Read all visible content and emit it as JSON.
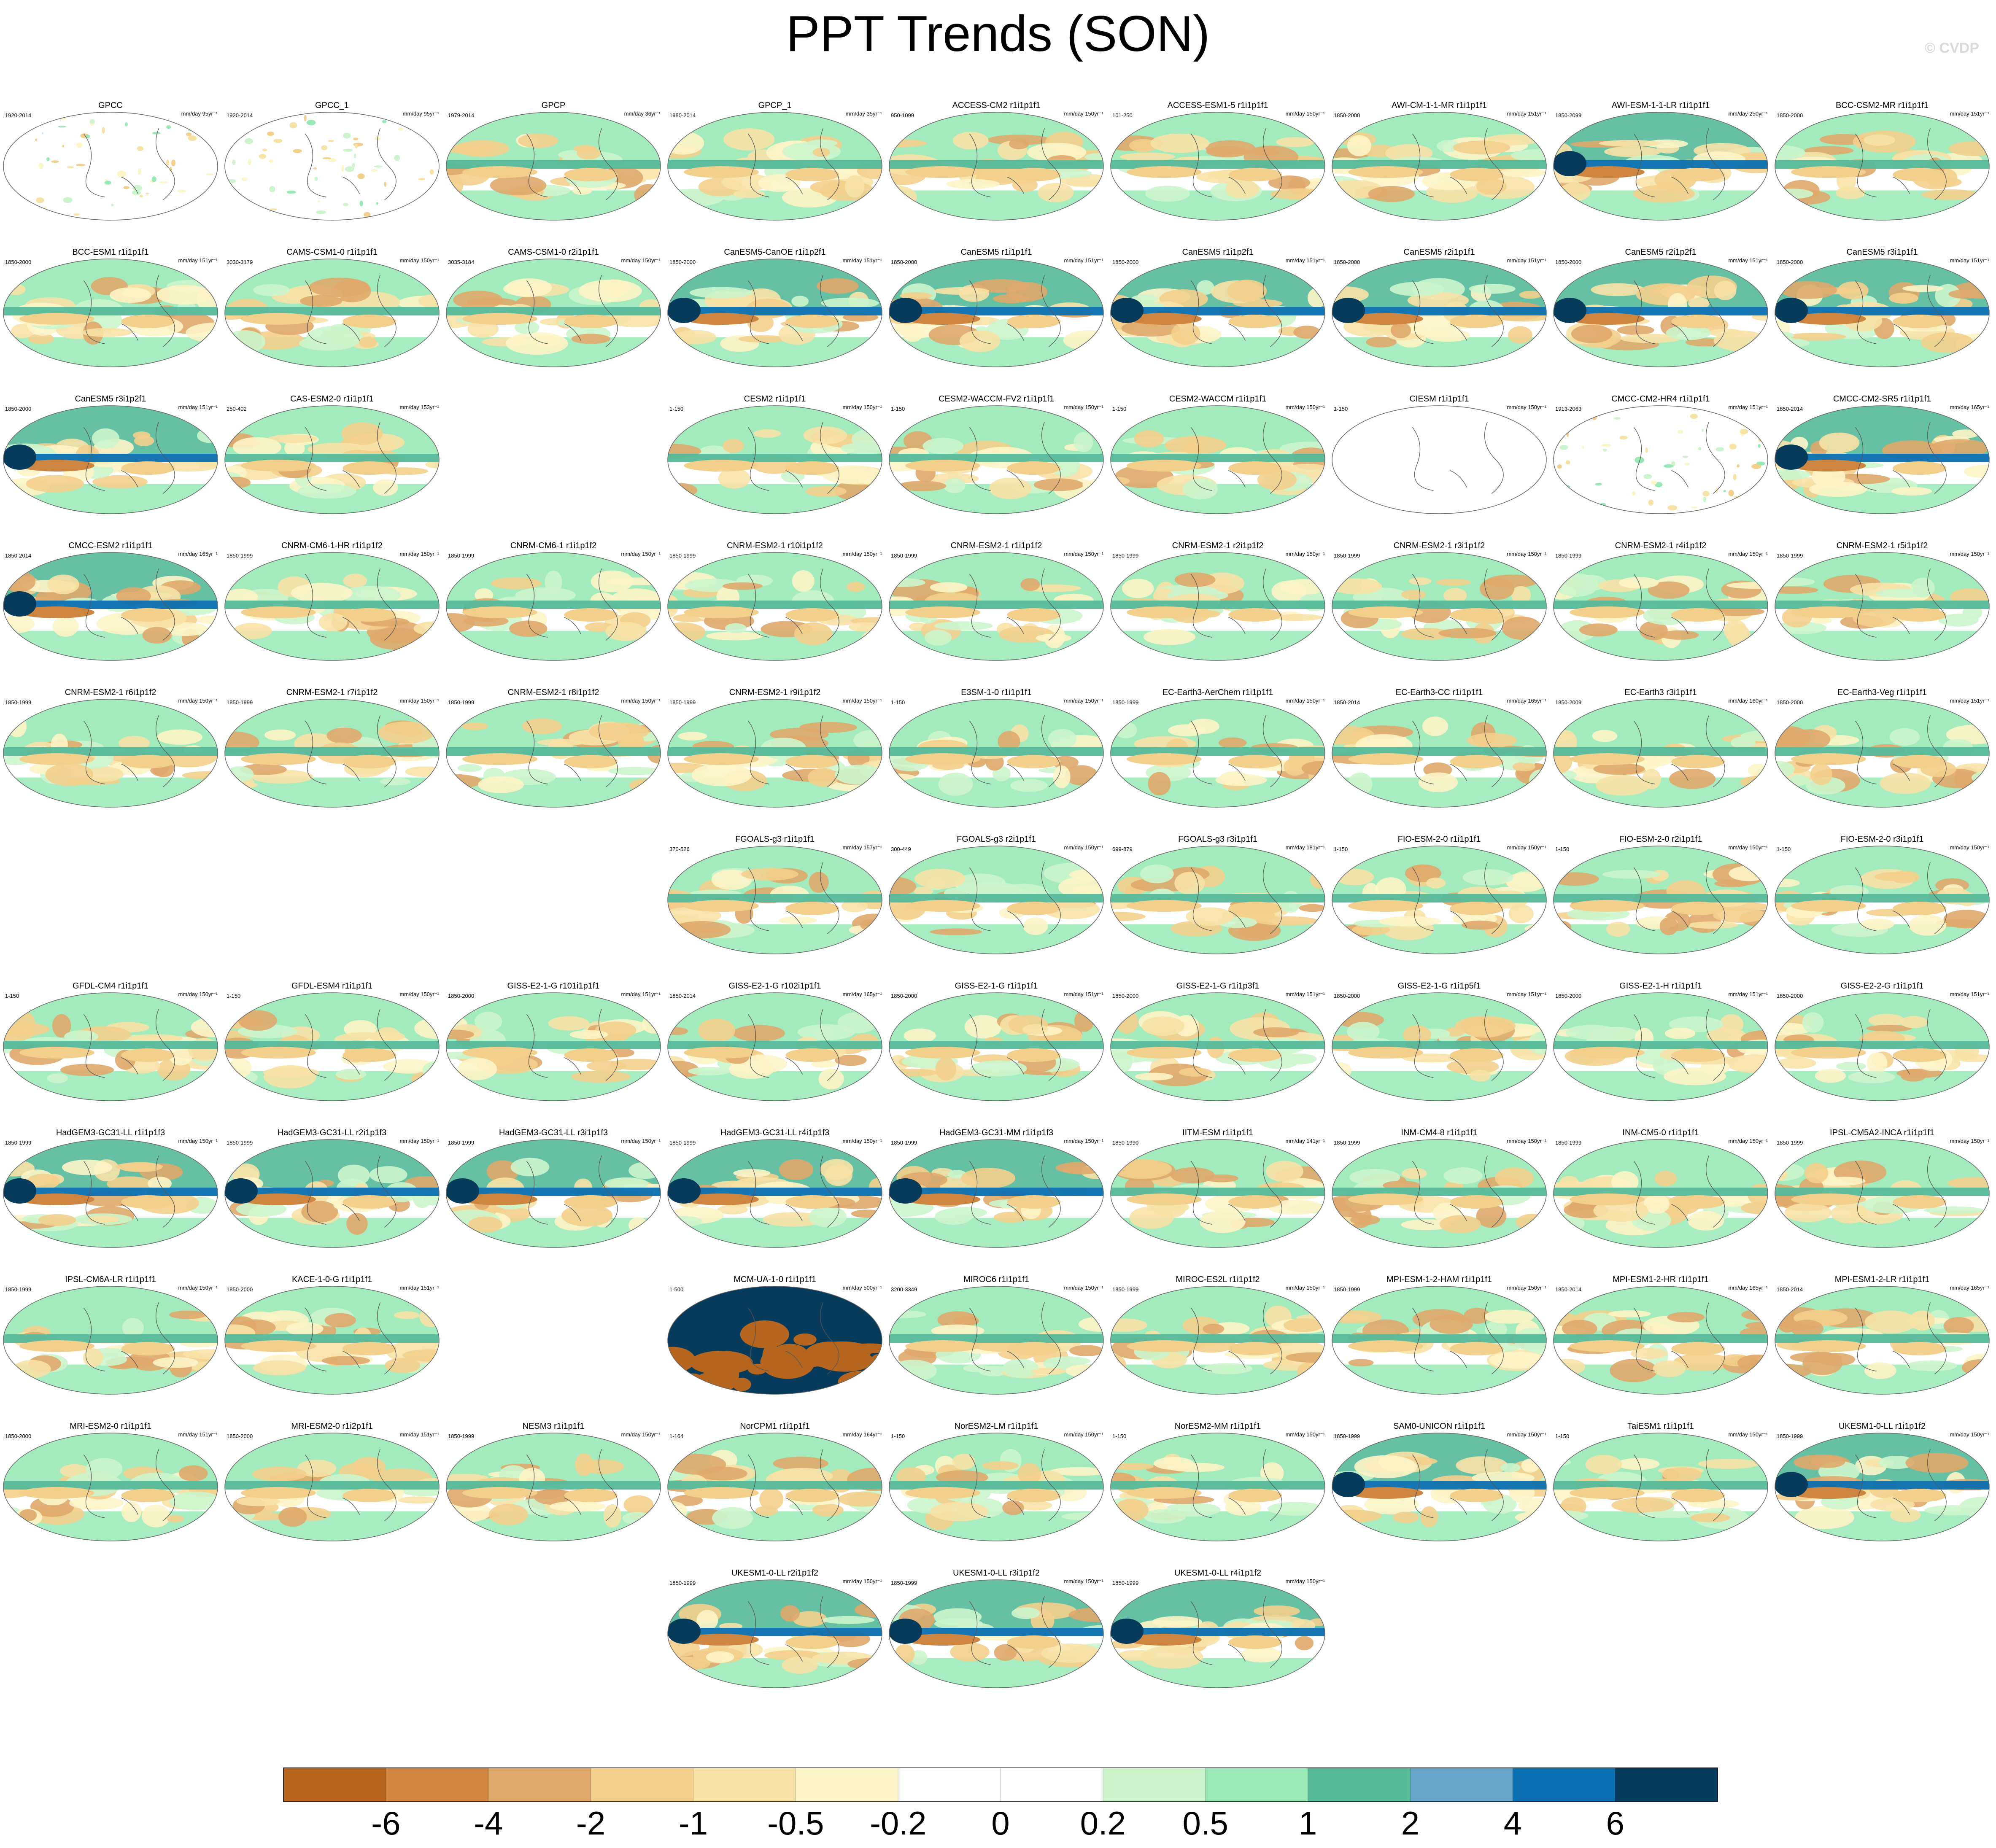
{
  "title": "PPT Trends (SON)",
  "credit": "© CVDP",
  "chart_data": {
    "type": "heatmap",
    "title": "PPT Trends (SON)",
    "map_projection": "Robinson (global, Pacific-centered)",
    "variable": "precipitation trend",
    "colorbar": {
      "tick_labels": [
        "-6",
        "-4",
        "-2",
        "-1",
        "-0.5",
        "-0.2",
        "0",
        "0.2",
        "0.5",
        "1",
        "2",
        "4",
        "6"
      ],
      "colors": [
        "#b5651d",
        "#cd853f",
        "#dfa86b",
        "#f3cf8c",
        "#f7e2a6",
        "#fdf4c7",
        "#ffffff",
        "#ffffff",
        "#ccf5cd",
        "#99e9b6",
        "#55b99a",
        "#69a5c9",
        "#0a6fb0",
        "#073b5c"
      ]
    },
    "panels": [
      {
        "name": "GPCC",
        "years": "1920-2014",
        "units": "mm/day 95yr⁻¹",
        "field": "sparse"
      },
      {
        "name": "GPCC_1",
        "years": "1920-2014",
        "units": "mm/day 95yr⁻¹",
        "field": "sparse"
      },
      {
        "name": "GPCP",
        "years": "1979-2014",
        "units": "mm/day 36yr⁻¹",
        "field": "obs"
      },
      {
        "name": "GPCP_1",
        "years": "1980-2014",
        "units": "mm/day 35yr⁻¹",
        "field": "obs"
      },
      {
        "name": "ACCESS-CM2 r1i1p1f1",
        "years": "950-1099",
        "units": "mm/day 150yr⁻¹",
        "field": "model"
      },
      {
        "name": "ACCESS-ESM1-5 r1i1p1f1",
        "years": "101-250",
        "units": "mm/day 150yr⁻¹",
        "field": "model"
      },
      {
        "name": "AWI-CM-1-1-MR r1i1p1f1",
        "years": "1850-2000",
        "units": "mm/day 151yr⁻¹",
        "field": "model"
      },
      {
        "name": "AWI-ESM-1-1-LR r1i1p1f1",
        "years": "1850-2099",
        "units": "mm/day 250yr⁻¹",
        "field": "strong"
      },
      {
        "name": "BCC-CSM2-MR r1i1p1f1",
        "years": "1850-2000",
        "units": "mm/day 151yr⁻¹",
        "field": "model"
      },
      {
        "name": "BCC-ESM1 r1i1p1f1",
        "years": "1850-2000",
        "units": "mm/day 151yr⁻¹",
        "field": "model"
      },
      {
        "name": "CAMS-CSM1-0 r1i1p1f1",
        "years": "3030-3179",
        "units": "mm/day 150yr⁻¹",
        "field": "model"
      },
      {
        "name": "CAMS-CSM1-0 r2i1p1f1",
        "years": "3035-3184",
        "units": "mm/day 150yr⁻¹",
        "field": "model"
      },
      {
        "name": "CanESM5-CanOE r1i1p2f1",
        "years": "1850-2000",
        "units": "mm/day 151yr⁻¹",
        "field": "strong"
      },
      {
        "name": "CanESM5 r1i1p1f1",
        "years": "1850-2000",
        "units": "mm/day 151yr⁻¹",
        "field": "strong"
      },
      {
        "name": "CanESM5 r1i1p2f1",
        "years": "1850-2000",
        "units": "mm/day 151yr⁻¹",
        "field": "strong"
      },
      {
        "name": "CanESM5 r2i1p1f1",
        "years": "1850-2000",
        "units": "mm/day 151yr⁻¹",
        "field": "strong"
      },
      {
        "name": "CanESM5 r2i1p2f1",
        "years": "1850-2000",
        "units": "mm/day 151yr⁻¹",
        "field": "strong"
      },
      {
        "name": "CanESM5 r3i1p1f1",
        "years": "1850-2000",
        "units": "mm/day 151yr⁻¹",
        "field": "strong"
      },
      {
        "name": "CanESM5 r3i1p2f1",
        "years": "1850-2000",
        "units": "mm/day 151yr⁻¹",
        "field": "strong"
      },
      {
        "name": "CAS-ESM2-0 r1i1p1f1",
        "years": "250-402",
        "units": "mm/day 153yr⁻¹",
        "field": "model"
      },
      null,
      {
        "name": "CESM2 r1i1p1f1",
        "years": "1-150",
        "units": "mm/day 150yr⁻¹",
        "field": "model"
      },
      {
        "name": "CESM2-WACCM-FV2 r1i1p1f1",
        "years": "1-150",
        "units": "mm/day 150yr⁻¹",
        "field": "model"
      },
      {
        "name": "CESM2-WACCM r1i1p1f1",
        "years": "1-150",
        "units": "mm/day 150yr⁻¹",
        "field": "model"
      },
      {
        "name": "CIESM r1i1p1f1",
        "years": "1-150",
        "units": "mm/day 150yr⁻¹",
        "field": "blank"
      },
      {
        "name": "CMCC-CM2-HR4 r1i1p1f1",
        "years": "1913-2063",
        "units": "mm/day 151yr⁻¹",
        "field": "sparse"
      },
      {
        "name": "CMCC-CM2-SR5 r1i1p1f1",
        "years": "1850-2014",
        "units": "mm/day 165yr⁻¹",
        "field": "strong"
      },
      {
        "name": "CMCC-ESM2 r1i1p1f1",
        "years": "1850-2014",
        "units": "mm/day 165yr⁻¹",
        "field": "strong"
      },
      {
        "name": "CNRM-CM6-1-HR r1i1p1f2",
        "years": "1850-1999",
        "units": "mm/day 150yr⁻¹",
        "field": "model"
      },
      {
        "name": "CNRM-CM6-1 r1i1p1f2",
        "years": "1850-1999",
        "units": "mm/day 150yr⁻¹",
        "field": "model"
      },
      {
        "name": "CNRM-ESM2-1 r10i1p1f2",
        "years": "1850-1999",
        "units": "mm/day 150yr⁻¹",
        "field": "model"
      },
      {
        "name": "CNRM-ESM2-1 r1i1p1f2",
        "years": "1850-1999",
        "units": "mm/day 150yr⁻¹",
        "field": "model"
      },
      {
        "name": "CNRM-ESM2-1 r2i1p1f2",
        "years": "1850-1999",
        "units": "mm/day 150yr⁻¹",
        "field": "model"
      },
      {
        "name": "CNRM-ESM2-1 r3i1p1f2",
        "years": "1850-1999",
        "units": "mm/day 150yr⁻¹",
        "field": "model"
      },
      {
        "name": "CNRM-ESM2-1 r4i1p1f2",
        "years": "1850-1999",
        "units": "mm/day 150yr⁻¹",
        "field": "model"
      },
      {
        "name": "CNRM-ESM2-1 r5i1p1f2",
        "years": "1850-1999",
        "units": "mm/day 150yr⁻¹",
        "field": "model"
      },
      {
        "name": "CNRM-ESM2-1 r6i1p1f2",
        "years": "1850-1999",
        "units": "mm/day 150yr⁻¹",
        "field": "model"
      },
      {
        "name": "CNRM-ESM2-1 r7i1p1f2",
        "years": "1850-1999",
        "units": "mm/day 150yr⁻¹",
        "field": "model"
      },
      {
        "name": "CNRM-ESM2-1 r8i1p1f2",
        "years": "1850-1999",
        "units": "mm/day 150yr⁻¹",
        "field": "model"
      },
      {
        "name": "CNRM-ESM2-1 r9i1p1f2",
        "years": "1850-1999",
        "units": "mm/day 150yr⁻¹",
        "field": "model"
      },
      {
        "name": "E3SM-1-0 r1i1p1f1",
        "years": "1-150",
        "units": "mm/day 150yr⁻¹",
        "field": "model"
      },
      {
        "name": "EC-Earth3-AerChem r1i1p1f1",
        "years": "1850-1999",
        "units": "mm/day 150yr⁻¹",
        "field": "model"
      },
      {
        "name": "EC-Earth3-CC r1i1p1f1",
        "years": "1850-2014",
        "units": "mm/day 165yr⁻¹",
        "field": "model"
      },
      {
        "name": "EC-Earth3 r3i1p1f1",
        "years": "1850-2009",
        "units": "mm/day 160yr⁻¹",
        "field": "model"
      },
      {
        "name": "EC-Earth3-Veg r1i1p1f1",
        "years": "1850-2000",
        "units": "mm/day 151yr⁻¹",
        "field": "model"
      },
      null,
      null,
      null,
      {
        "name": "FGOALS-g3 r1i1p1f1",
        "years": "370-526",
        "units": "mm/day 157yr⁻¹",
        "field": "model"
      },
      {
        "name": "FGOALS-g3 r2i1p1f1",
        "years": "300-449",
        "units": "mm/day 150yr⁻¹",
        "field": "model"
      },
      {
        "name": "FGOALS-g3 r3i1p1f1",
        "years": "699-879",
        "units": "mm/day 181yr⁻¹",
        "field": "model"
      },
      {
        "name": "FIO-ESM-2-0 r1i1p1f1",
        "years": "1-150",
        "units": "mm/day 150yr⁻¹",
        "field": "model"
      },
      {
        "name": "FIO-ESM-2-0 r2i1p1f1",
        "years": "1-150",
        "units": "mm/day 150yr⁻¹",
        "field": "model"
      },
      {
        "name": "FIO-ESM-2-0 r3i1p1f1",
        "years": "1-150",
        "units": "mm/day 150yr⁻¹",
        "field": "model"
      },
      {
        "name": "GFDL-CM4 r1i1p1f1",
        "years": "1-150",
        "units": "mm/day 150yr⁻¹",
        "field": "model"
      },
      {
        "name": "GFDL-ESM4 r1i1p1f1",
        "years": "1-150",
        "units": "mm/day 150yr⁻¹",
        "field": "model"
      },
      {
        "name": "GISS-E2-1-G r101i1p1f1",
        "years": "1850-2000",
        "units": "mm/day 151yr⁻¹",
        "field": "model"
      },
      {
        "name": "GISS-E2-1-G r102i1p1f1",
        "years": "1850-2014",
        "units": "mm/day 165yr⁻¹",
        "field": "model"
      },
      {
        "name": "GISS-E2-1-G r1i1p1f1",
        "years": "1850-2000",
        "units": "mm/day 151yr⁻¹",
        "field": "model"
      },
      {
        "name": "GISS-E2-1-G r1i1p3f1",
        "years": "1850-2000",
        "units": "mm/day 151yr⁻¹",
        "field": "model"
      },
      {
        "name": "GISS-E2-1-G r1i1p5f1",
        "years": "1850-2000",
        "units": "mm/day 151yr⁻¹",
        "field": "model"
      },
      {
        "name": "GISS-E2-1-H r1i1p1f1",
        "years": "1850-2000",
        "units": "mm/day 151yr⁻¹",
        "field": "model"
      },
      {
        "name": "GISS-E2-2-G r1i1p1f1",
        "years": "1850-2000",
        "units": "mm/day 151yr⁻¹",
        "field": "model"
      },
      {
        "name": "HadGEM3-GC31-LL r1i1p1f3",
        "years": "1850-1999",
        "units": "mm/day 150yr⁻¹",
        "field": "strong"
      },
      {
        "name": "HadGEM3-GC31-LL r2i1p1f3",
        "years": "1850-1999",
        "units": "mm/day 150yr⁻¹",
        "field": "strong"
      },
      {
        "name": "HadGEM3-GC31-LL r3i1p1f3",
        "years": "1850-1999",
        "units": "mm/day 150yr⁻¹",
        "field": "strong"
      },
      {
        "name": "HadGEM3-GC31-LL r4i1p1f3",
        "years": "1850-1999",
        "units": "mm/day 150yr⁻¹",
        "field": "strong"
      },
      {
        "name": "HadGEM3-GC31-MM r1i1p1f3",
        "years": "1850-1999",
        "units": "mm/day 150yr⁻¹",
        "field": "strong"
      },
      {
        "name": "IITM-ESM r1i1p1f1",
        "years": "1850-1990",
        "units": "mm/day 141yr⁻¹",
        "field": "model"
      },
      {
        "name": "INM-CM4-8 r1i1p1f1",
        "years": "1850-1999",
        "units": "mm/day 150yr⁻¹",
        "field": "model"
      },
      {
        "name": "INM-CM5-0 r1i1p1f1",
        "years": "1850-1999",
        "units": "mm/day 150yr⁻¹",
        "field": "model"
      },
      {
        "name": "IPSL-CM5A2-INCA r1i1p1f1",
        "years": "1850-1999",
        "units": "mm/day 150yr⁻¹",
        "field": "model"
      },
      {
        "name": "IPSL-CM6A-LR r1i1p1f1",
        "years": "1850-1999",
        "units": "mm/day 150yr⁻¹",
        "field": "model"
      },
      {
        "name": "KACE-1-0-G r1i1p1f1",
        "years": "1850-2000",
        "units": "mm/day 151yr⁻¹",
        "field": "model"
      },
      null,
      {
        "name": "MCM-UA-1-0 r1i1p1f1",
        "years": "1-500",
        "units": "mm/day 500yr⁻¹",
        "field": "mcm"
      },
      {
        "name": "MIROC6 r1i1p1f1",
        "years": "3200-3349",
        "units": "mm/day 150yr⁻¹",
        "field": "model"
      },
      {
        "name": "MIROC-ES2L r1i1p1f2",
        "years": "1850-1999",
        "units": "mm/day 150yr⁻¹",
        "field": "model"
      },
      {
        "name": "MPI-ESM-1-2-HAM r1i1p1f1",
        "years": "1850-1999",
        "units": "mm/day 150yr⁻¹",
        "field": "model"
      },
      {
        "name": "MPI-ESM1-2-HR r1i1p1f1",
        "years": "1850-2014",
        "units": "mm/day 165yr⁻¹",
        "field": "model"
      },
      {
        "name": "MPI-ESM1-2-LR r1i1p1f1",
        "years": "1850-2014",
        "units": "mm/day 165yr⁻¹",
        "field": "model"
      },
      {
        "name": "MRI-ESM2-0 r1i1p1f1",
        "years": "1850-2000",
        "units": "mm/day 151yr⁻¹",
        "field": "model"
      },
      {
        "name": "MRI-ESM2-0 r1i2p1f1",
        "years": "1850-2000",
        "units": "mm/day 151yr⁻¹",
        "field": "model"
      },
      {
        "name": "NESM3 r1i1p1f1",
        "years": "1850-1999",
        "units": "mm/day 150yr⁻¹",
        "field": "model"
      },
      {
        "name": "NorCPM1 r1i1p1f1",
        "years": "1-164",
        "units": "mm/day 164yr⁻¹",
        "field": "model"
      },
      {
        "name": "NorESM2-LM r1i1p1f1",
        "years": "1-150",
        "units": "mm/day 150yr⁻¹",
        "field": "model"
      },
      {
        "name": "NorESM2-MM r1i1p1f1",
        "years": "1-150",
        "units": "mm/day 150yr⁻¹",
        "field": "model"
      },
      {
        "name": "SAM0-UNICON r1i1p1f1",
        "years": "1850-1999",
        "units": "mm/day 150yr⁻¹",
        "field": "strong"
      },
      {
        "name": "TaiESM1 r1i1p1f1",
        "years": "1-150",
        "units": "mm/day 150yr⁻¹",
        "field": "model"
      },
      {
        "name": "UKESM1-0-LL r1i1p1f2",
        "years": "1850-1999",
        "units": "mm/day 150yr⁻¹",
        "field": "strong"
      },
      null,
      null,
      null,
      {
        "name": "UKESM1-0-LL r2i1p1f2",
        "years": "1850-1999",
        "units": "mm/day 150yr⁻¹",
        "field": "strong"
      },
      {
        "name": "UKESM1-0-LL r3i1p1f2",
        "years": "1850-1999",
        "units": "mm/day 150yr⁻¹",
        "field": "strong"
      },
      {
        "name": "UKESM1-0-LL r4i1p1f2",
        "years": "1850-1999",
        "units": "mm/day 150yr⁻¹",
        "field": "strong"
      }
    ]
  }
}
